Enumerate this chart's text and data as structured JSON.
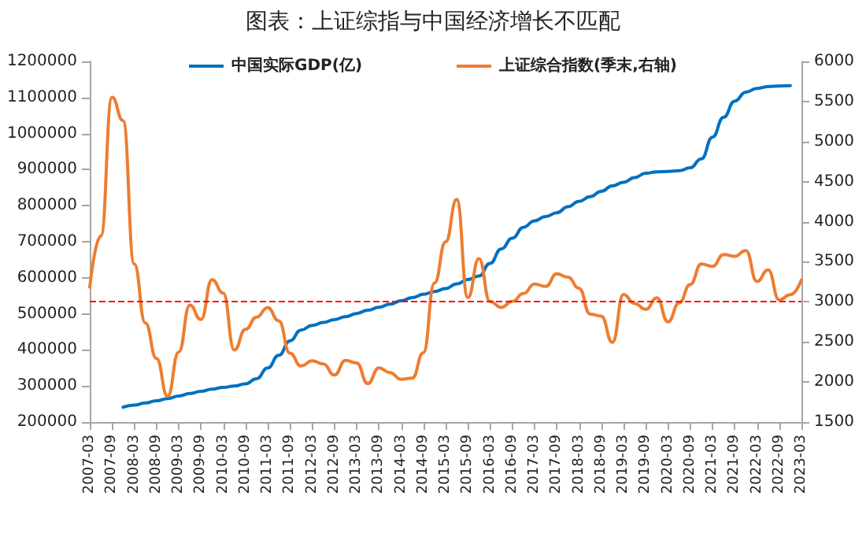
{
  "chart_data": {
    "type": "line",
    "title": "图表：上证综指与中国经济增长不匹配",
    "categories": [
      "2007-03",
      null,
      "2007-09",
      null,
      "2008-03",
      null,
      "2008-09",
      null,
      "2009-03",
      null,
      "2009-09",
      null,
      "2010-03",
      null,
      "2010-09",
      null,
      "2011-03",
      null,
      "2011-09",
      null,
      "2012-03",
      null,
      "2012-09",
      null,
      "2013-03",
      null,
      "2013-09",
      null,
      "2014-03",
      null,
      "2014-09",
      null,
      "2015-03",
      null,
      "2015-09",
      null,
      "2016-03",
      null,
      "2016-09",
      null,
      "2017-03",
      null,
      "2017-09",
      null,
      "2018-03",
      null,
      "2018-09",
      null,
      "2019-03",
      null,
      "2019-09",
      null,
      "2020-03",
      null,
      "2020-09",
      null,
      "2021-03",
      null,
      "2021-09",
      null,
      "2022-03",
      null,
      "2022-09",
      null,
      "2023-03"
    ],
    "series": [
      {
        "name": "中国实际GDP(亿)",
        "color": "#0070c0",
        "values": [
          null,
          null,
          null,
          241000,
          247000,
          253000,
          259000,
          265000,
          272000,
          279000,
          285000,
          291000,
          296000,
          300000,
          306000,
          320000,
          350000,
          385000,
          425000,
          455000,
          468000,
          476000,
          484000,
          492000,
          501000,
          510000,
          518000,
          527000,
          536000,
          545000,
          554000,
          562000,
          570000,
          583000,
          595000,
          605000,
          640000,
          680000,
          710000,
          740000,
          758000,
          770000,
          780000,
          797000,
          812000,
          825000,
          840000,
          855000,
          865000,
          878000,
          890000,
          894000,
          895000,
          897000,
          905000,
          930000,
          990000,
          1045000,
          1090000,
          1115000,
          1125000,
          1130000,
          1132000,
          1133000,
          null
        ]
      },
      {
        "name": "上证综合指数(季末,右轴)",
        "color": "#ed7d31",
        "axis": "y2",
        "values": [
          3183,
          3821,
          5552,
          5261,
          3472,
          2736,
          2293,
          1821,
          2373,
          2959,
          2779,
          3277,
          3109,
          2398,
          2656,
          2808,
          2928,
          2762,
          2359,
          2199,
          2263,
          2225,
          2086,
          2269,
          2237,
          1979,
          2175,
          2116,
          2033,
          2048,
          2364,
          3235,
          3748,
          4277,
          3053,
          3539,
          3004,
          2930,
          3005,
          3104,
          3223,
          3192,
          3349,
          3307,
          3169,
          2847,
          2821,
          2494,
          3091,
          2979,
          2905,
          3050,
          2750,
          2985,
          3218,
          3473,
          3442,
          3591,
          3568,
          3640,
          3253,
          3399,
          3024,
          3089,
          3273
        ]
      }
    ],
    "ylim": [
      200000,
      1200000
    ],
    "yticks": [
      200000,
      300000,
      400000,
      500000,
      600000,
      700000,
      800000,
      900000,
      1000000,
      1100000,
      1200000
    ],
    "y2lim": [
      1500,
      6000
    ],
    "y2ticks": [
      1500,
      2000,
      2500,
      3000,
      3500,
      4000,
      4500,
      5000,
      5500,
      6000
    ],
    "ref_lines": [
      {
        "axis": "y2",
        "value": 3000,
        "color": "#ff0000",
        "line_style": "dashed"
      }
    ],
    "grid": false,
    "legend": "top",
    "marker": "none",
    "line_style": "solid"
  }
}
